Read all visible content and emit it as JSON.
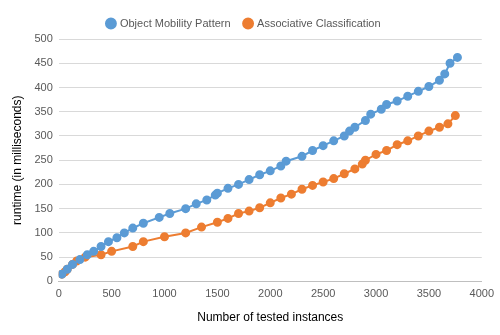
{
  "chart_data": {
    "type": "line",
    "x_label": "Number of tested instances",
    "y_label": "runtime (in milliseconds)",
    "xlim": [
      0,
      4000
    ],
    "xticks": [
      0,
      500,
      1000,
      1500,
      2000,
      2500,
      3000,
      3500,
      4000
    ],
    "ylim": [
      0,
      500
    ],
    "yticks": [
      0,
      50,
      100,
      150,
      200,
      250,
      300,
      350,
      400,
      450,
      500
    ],
    "grid": "y",
    "legend": "top",
    "series": [
      {
        "name": "Object Mobility Pattern",
        "color": "#5b9bd5",
        "marker": "circle",
        "x": [
          30,
          80,
          130,
          200,
          270,
          330,
          400,
          470,
          550,
          620,
          700,
          800,
          950,
          1050,
          1200,
          1300,
          1400,
          1480,
          1500,
          1600,
          1700,
          1800,
          1900,
          2000,
          2100,
          2150,
          2300,
          2400,
          2500,
          2600,
          2700,
          2750,
          2800,
          2900,
          2950,
          3050,
          3100,
          3200,
          3300,
          3400,
          3500,
          3600,
          3650,
          3700,
          3770
        ],
        "values": [
          15,
          25,
          35,
          45,
          55,
          62,
          72,
          82,
          90,
          100,
          110,
          120,
          132,
          140,
          150,
          160,
          168,
          178,
          182,
          192,
          200,
          210,
          220,
          228,
          238,
          248,
          258,
          270,
          280,
          290,
          300,
          310,
          318,
          332,
          345,
          355,
          365,
          372,
          382,
          392,
          402,
          415,
          428,
          450,
          462
        ]
      },
      {
        "name": "Associative Classification",
        "color": "#ed7d31",
        "marker": "circle",
        "x": [
          30,
          60,
          80,
          130,
          170,
          250,
          400,
          500,
          700,
          800,
          1000,
          1200,
          1350,
          1500,
          1600,
          1700,
          1800,
          1900,
          2000,
          2100,
          2200,
          2300,
          2400,
          2500,
          2600,
          2700,
          2800,
          2870,
          2900,
          3000,
          3100,
          3200,
          3300,
          3400,
          3500,
          3600,
          3680,
          3750
        ],
        "values": [
          15,
          20,
          25,
          35,
          42,
          50,
          55,
          62,
          72,
          82,
          92,
          100,
          112,
          122,
          130,
          140,
          145,
          152,
          162,
          172,
          180,
          190,
          198,
          205,
          212,
          222,
          232,
          242,
          250,
          262,
          270,
          282,
          290,
          300,
          310,
          318,
          325,
          342
        ]
      }
    ]
  }
}
